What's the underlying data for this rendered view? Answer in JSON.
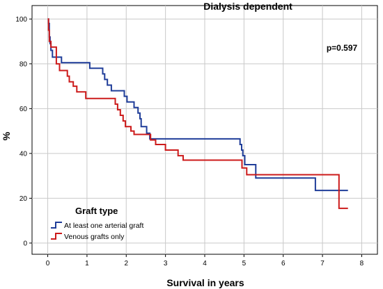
{
  "chart_data": {
    "type": "line",
    "subtype": "kaplan-meier step",
    "title": "Dialysis dependent",
    "xlabel": "Survival in years",
    "ylabel": "%",
    "xlim": [
      -0.4,
      8.4
    ],
    "ylim": [
      -5,
      106
    ],
    "xticks": [
      0,
      1,
      2,
      3,
      4,
      5,
      6,
      7,
      8
    ],
    "yticks": [
      0,
      20,
      40,
      60,
      80,
      100
    ],
    "grid": true,
    "annotation": "p=0.597",
    "legend": {
      "title": "Graft type",
      "placement": "bottom-left"
    },
    "series": [
      {
        "name": "At least one arterial graft",
        "color": "#1f3d99",
        "points": [
          [
            0,
            100
          ],
          [
            0.02,
            98
          ],
          [
            0.04,
            92
          ],
          [
            0.06,
            89
          ],
          [
            0.08,
            86
          ],
          [
            0.12,
            83
          ],
          [
            0.35,
            80.5
          ],
          [
            1.07,
            78
          ],
          [
            1.4,
            75.5
          ],
          [
            1.45,
            73
          ],
          [
            1.52,
            70.5
          ],
          [
            1.62,
            68
          ],
          [
            1.95,
            65.5
          ],
          [
            2.02,
            63
          ],
          [
            2.2,
            60.5
          ],
          [
            2.3,
            58
          ],
          [
            2.35,
            55.5
          ],
          [
            2.38,
            52
          ],
          [
            2.52,
            49
          ],
          [
            2.6,
            46.5
          ],
          [
            4.9,
            44
          ],
          [
            4.94,
            41.5
          ],
          [
            4.97,
            39
          ],
          [
            5.02,
            35
          ],
          [
            5.3,
            29
          ],
          [
            6.82,
            23.5
          ],
          [
            7.65,
            23.5
          ]
        ]
      },
      {
        "name": "Venous grafts only",
        "color": "#cc1a1a",
        "points": [
          [
            0,
            100
          ],
          [
            0.02,
            95
          ],
          [
            0.04,
            90
          ],
          [
            0.08,
            87.5
          ],
          [
            0.22,
            80
          ],
          [
            0.3,
            77
          ],
          [
            0.5,
            74.5
          ],
          [
            0.55,
            72
          ],
          [
            0.65,
            70
          ],
          [
            0.74,
            67.5
          ],
          [
            0.97,
            64.5
          ],
          [
            1.72,
            62
          ],
          [
            1.78,
            59.5
          ],
          [
            1.85,
            57
          ],
          [
            1.92,
            54.5
          ],
          [
            1.98,
            52
          ],
          [
            2.12,
            50
          ],
          [
            2.2,
            48.5
          ],
          [
            2.62,
            46
          ],
          [
            2.75,
            44
          ],
          [
            3.0,
            41.5
          ],
          [
            3.32,
            39
          ],
          [
            3.45,
            37
          ],
          [
            4.95,
            33.5
          ],
          [
            5.07,
            30.5
          ],
          [
            7.42,
            15.5
          ],
          [
            7.65,
            15.5
          ]
        ]
      }
    ]
  }
}
